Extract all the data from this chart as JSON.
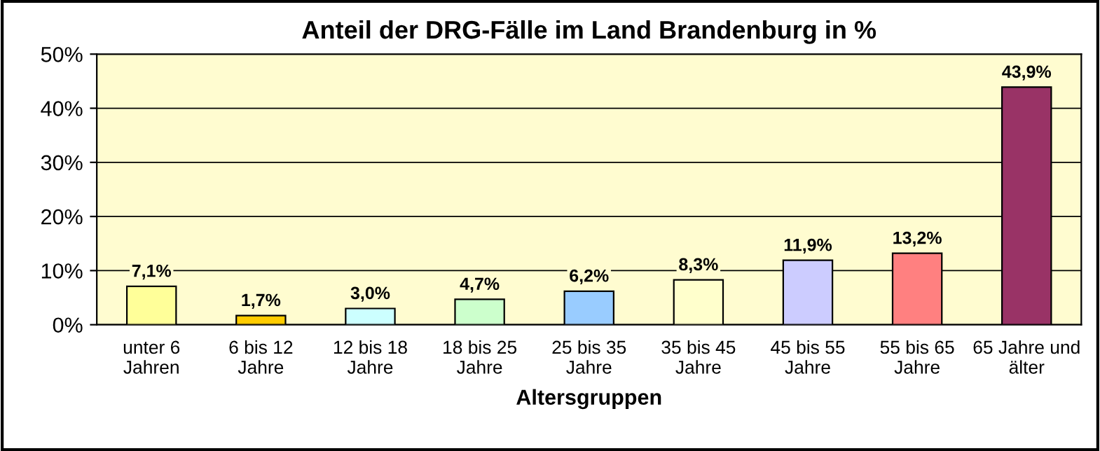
{
  "chart_data": {
    "type": "bar",
    "title": "Anteil der DRG-Fälle im Land Brandenburg in %",
    "xlabel": "Altersgruppen",
    "categories": [
      "unter 6\nJahren",
      "6 bis 12\nJahre",
      "12 bis 18\nJahre",
      "18 bis 25\nJahre",
      "25 bis 35\nJahre",
      "35 bis 45\nJahre",
      "45 bis 55\nJahre",
      "55 bis 65\nJahre",
      "65 Jahre und\nälter"
    ],
    "values": [
      7.1,
      1.7,
      3.0,
      4.7,
      6.2,
      8.3,
      11.9,
      13.2,
      43.9
    ],
    "value_labels": [
      "7,1%",
      "1,7%",
      "3,0%",
      "4,7%",
      "6,2%",
      "8,3%",
      "11,9%",
      "13,2%",
      "43,9%"
    ],
    "colors": [
      "#ffff99",
      "#ffcc00",
      "#ccffff",
      "#ccffcc",
      "#99ccff",
      "#ffffcc",
      "#ccccff",
      "#ff8080",
      "#993366"
    ],
    "ylim": [
      0,
      50
    ],
    "yticks": [
      {
        "value": 0,
        "label": "0%"
      },
      {
        "value": 10,
        "label": "10%"
      },
      {
        "value": 20,
        "label": "20%"
      },
      {
        "value": 30,
        "label": "30%"
      },
      {
        "value": 40,
        "label": "40%"
      },
      {
        "value": 50,
        "label": "50%"
      }
    ],
    "grid": "y",
    "legend": false
  }
}
